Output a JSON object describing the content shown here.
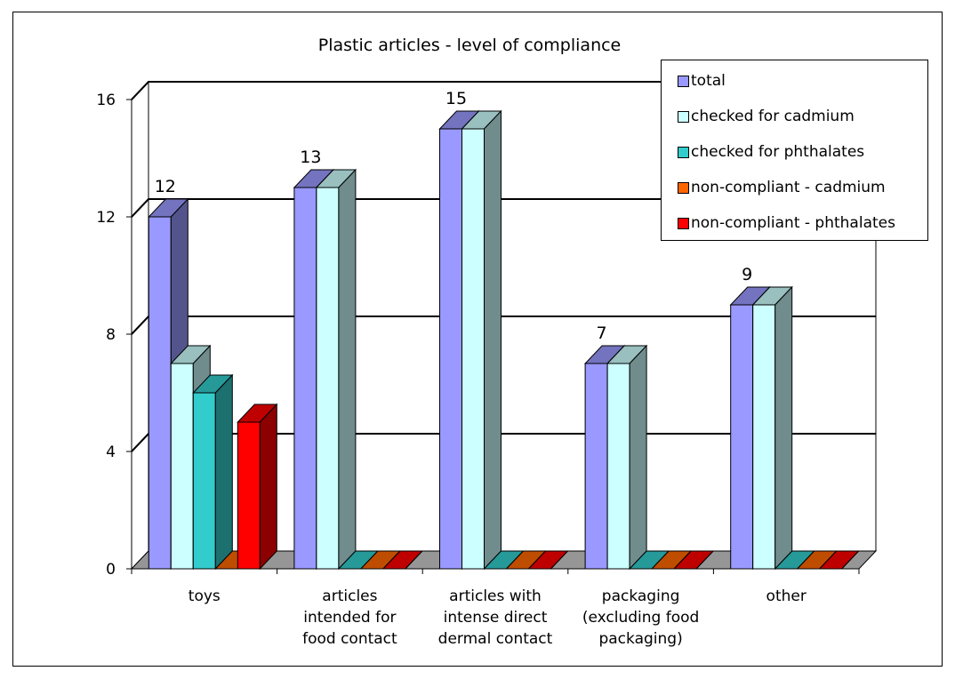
{
  "chart_data": {
    "type": "bar",
    "title": "Plastic articles - level of compliance",
    "xlabel": "",
    "ylabel": "",
    "ylim": [
      0,
      16
    ],
    "yticks": [
      "0",
      "4",
      "8",
      "12",
      "16"
    ],
    "grid": true,
    "legend_position": "top-right",
    "categories": [
      [
        "toys"
      ],
      [
        "articles",
        "intended for",
        "food contact"
      ],
      [
        "articles with",
        "intense direct",
        "dermal contact"
      ],
      [
        "packaging",
        "(excluding food",
        "packaging)"
      ],
      [
        "other"
      ]
    ],
    "series": [
      {
        "name": "total",
        "color": "#9999ff",
        "values": [
          12,
          13,
          15,
          7,
          9
        ]
      },
      {
        "name": "checked for cadmium",
        "color": "#ccffff",
        "values": [
          7,
          13,
          15,
          7,
          9
        ]
      },
      {
        "name": "checked for phthalates",
        "color": "#33cccc",
        "values": [
          6,
          0,
          0,
          0,
          0
        ]
      },
      {
        "name": "non-compliant - cadmium",
        "color": "#ff6600",
        "values": [
          0,
          0,
          0,
          0,
          0
        ]
      },
      {
        "name": "non-compliant - phthalates",
        "color": "#ff0000",
        "values": [
          5,
          0,
          0,
          0,
          0
        ]
      }
    ],
    "data_labels": {
      "series": "total",
      "values": [
        "12",
        "13",
        "15",
        "7",
        "9"
      ]
    },
    "colors": {
      "floor": "#969696",
      "gridline": "#000000",
      "wall": "#ffffff"
    }
  }
}
